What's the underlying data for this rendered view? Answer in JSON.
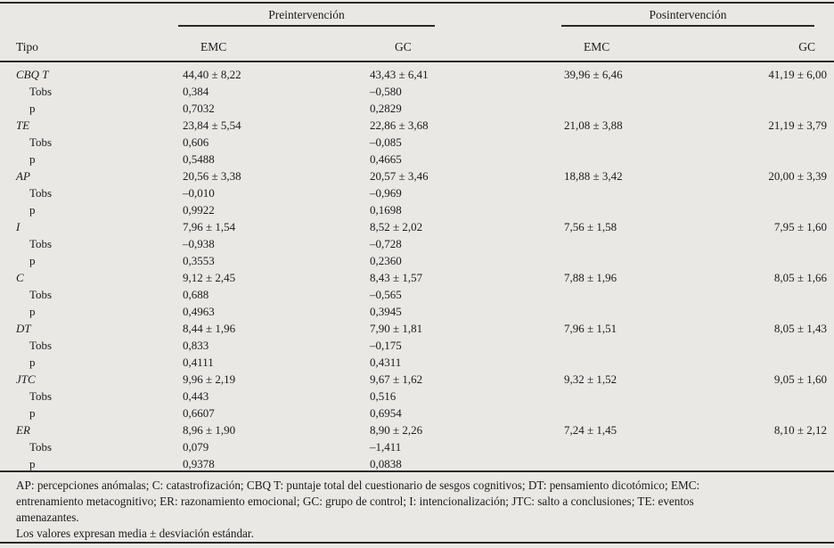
{
  "colors": {
    "page_bg": "#e9e8e5",
    "text": "#1b1b1b",
    "rule": "#2a2a2a"
  },
  "table": {
    "header": {
      "tipo": "Tipo",
      "pre_group": "Preintervención",
      "pos_group": "Posintervención",
      "pre_emc": "EMC",
      "pre_gc": "GC",
      "pos_emc": "EMC",
      "pos_gc": "GC"
    },
    "sub_labels": {
      "tobs": "Tobs",
      "p": "p"
    },
    "rows": [
      {
        "tipo": "CBQ T",
        "pre_emc": "44,40 ± 8,22",
        "pre_gc": "43,43 ± 6,41",
        "pos_emc": "39,96 ± 6,46",
        "pos_gc": "41,19 ± 6,00",
        "tobs_pre_emc": "0,384",
        "tobs_pre_gc": "–0,580",
        "p_pre_emc": "0,7032",
        "p_pre_gc": "0,2829"
      },
      {
        "tipo": "TE",
        "pre_emc": "23,84 ± 5,54",
        "pre_gc": "22,86 ± 3,68",
        "pos_emc": "21,08 ± 3,88",
        "pos_gc": "21,19 ± 3,79",
        "tobs_pre_emc": "0,606",
        "tobs_pre_gc": "–0,085",
        "p_pre_emc": "0,5488",
        "p_pre_gc": "0,4665"
      },
      {
        "tipo": "AP",
        "pre_emc": "20,56 ± 3,38",
        "pre_gc": "20,57 ± 3,46",
        "pos_emc": "18,88 ± 3,42",
        "pos_gc": "20,00 ± 3,39",
        "tobs_pre_emc": "–0,010",
        "tobs_pre_gc": "–0,969",
        "p_pre_emc": "0,9922",
        "p_pre_gc": "0,1698"
      },
      {
        "tipo": "I",
        "pre_emc": "7,96 ± 1,54",
        "pre_gc": "8,52 ± 2,02",
        "pos_emc": "7,56 ± 1,58",
        "pos_gc": "7,95 ± 1,60",
        "tobs_pre_emc": "–0,938",
        "tobs_pre_gc": "–0,728",
        "p_pre_emc": "0,3553",
        "p_pre_gc": "0,2360"
      },
      {
        "tipo": "C",
        "pre_emc": "9,12 ± 2,45",
        "pre_gc": "8,43 ± 1,57",
        "pos_emc": "7,88 ± 1,96",
        "pos_gc": "8,05 ± 1,66",
        "tobs_pre_emc": "0,688",
        "tobs_pre_gc": "–0,565",
        "p_pre_emc": "0,4963",
        "p_pre_gc": "0,3945"
      },
      {
        "tipo": "DT",
        "pre_emc": "8,44 ± 1,96",
        "pre_gc": "7,90 ± 1,81",
        "pos_emc": "7,96 ± 1,51",
        "pos_gc": "8,05 ± 1,43",
        "tobs_pre_emc": "0,833",
        "tobs_pre_gc": "–0,175",
        "p_pre_emc": "0,4111",
        "p_pre_gc": "0,4311"
      },
      {
        "tipo": "JTC",
        "pre_emc": "9,96 ± 2,19",
        "pre_gc": "9,67 ± 1,62",
        "pos_emc": "9,32 ± 1,52",
        "pos_gc": "9,05 ± 1,60",
        "tobs_pre_emc": "0,443",
        "tobs_pre_gc": "0,516",
        "p_pre_emc": "0,6607",
        "p_pre_gc": "0,6954"
      },
      {
        "tipo": "ER",
        "pre_emc": "8,96 ± 1,90",
        "pre_gc": "8,90 ± 2,26",
        "pos_emc": "7,24 ± 1,45",
        "pos_gc": "8,10 ± 2,12",
        "tobs_pre_emc": "0,079",
        "tobs_pre_gc": "–1,411",
        "p_pre_emc": "0,9378",
        "p_pre_gc": "0,0838"
      }
    ],
    "footnote_lines": [
      "AP: percepciones anómalas; C: catastrofización; CBQ T: puntaje total del cuestionario de sesgos cognitivos; DT: pensamiento dicotómico; EMC:",
      "entrenamiento metacognitivo; ER: razonamiento emocional; GC: grupo de control; I: intencionalización; JTC: salto a conclusiones; TE: eventos",
      "amenazantes.",
      "Los valores expresan media ± desviación estándar."
    ]
  }
}
